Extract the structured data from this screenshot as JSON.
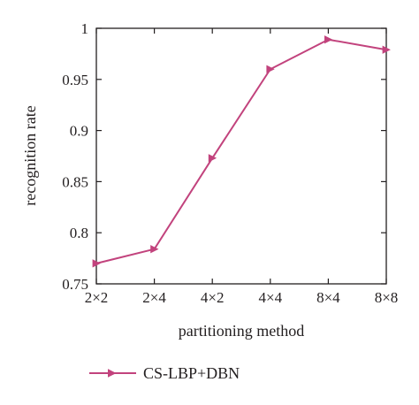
{
  "chart_data": {
    "type": "line",
    "title": "",
    "xlabel": "partitioning method",
    "ylabel": "recognition rate",
    "categories": [
      "2×2",
      "2×4",
      "4×2",
      "4×4",
      "8×4",
      "8×8"
    ],
    "ylim": [
      0.75,
      1
    ],
    "yticks": [
      0.75,
      0.8,
      0.85,
      0.9,
      0.95,
      1
    ],
    "ytick_labels": [
      "0.75",
      "0.8",
      "0.85",
      "0.9",
      "0.95",
      "1"
    ],
    "grid": false,
    "legend_position": "bottom",
    "series": [
      {
        "name": "CS-LBP+DBN",
        "color": "#c2437d",
        "marker": "triangle-right",
        "values": [
          0.77,
          0.784,
          0.873,
          0.96,
          0.989,
          0.979
        ]
      }
    ]
  }
}
